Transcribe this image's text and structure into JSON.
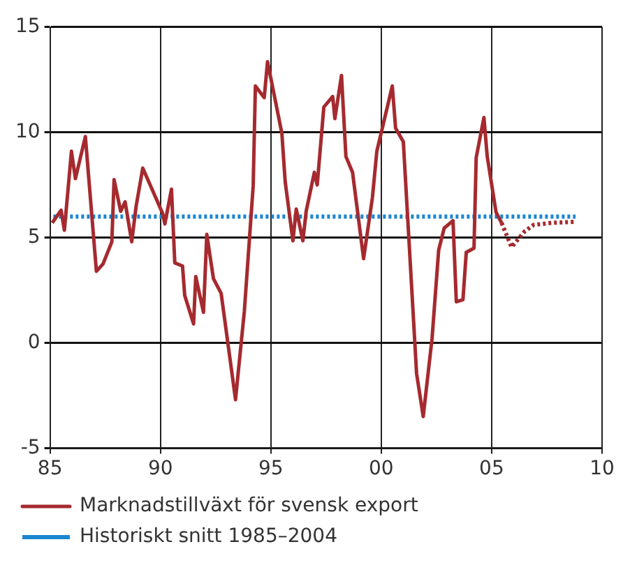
{
  "chart_data": {
    "type": "line",
    "xlim": [
      1985,
      2010
    ],
    "xticks": [
      {
        "value": 1985,
        "label": "85"
      },
      {
        "value": 1990,
        "label": "90"
      },
      {
        "value": 1995,
        "label": "95"
      },
      {
        "value": 2000,
        "label": "00"
      },
      {
        "value": 2005,
        "label": "05"
      },
      {
        "value": 2010,
        "label": "10"
      }
    ],
    "ylim": [
      -5,
      15
    ],
    "yticks": [
      -5,
      0,
      5,
      10,
      15
    ],
    "grid": true,
    "legend": "bottom",
    "marker": "none",
    "series": [
      {
        "name": "Marknadstillväxt för svensk export",
        "color": "#a52a2f",
        "line_style": "solid",
        "x": [
          1985.1,
          1985.5,
          1985.65,
          1985.97,
          1986.15,
          1986.6,
          1987.1,
          1987.4,
          1987.8,
          1987.9,
          1988.2,
          1988.4,
          1988.7,
          1988.9,
          1989.2,
          1990.1,
          1990.2,
          1990.5,
          1990.65,
          1991.0,
          1991.1,
          1991.5,
          1991.6,
          1991.95,
          1992.1,
          1992.4,
          1992.75,
          1993.4,
          1993.8,
          1994.2,
          1994.3,
          1994.7,
          1994.85,
          1995.5,
          1995.65,
          1996.0,
          1996.15,
          1996.45,
          1996.6,
          1996.97,
          1997.1,
          1997.4,
          1997.8,
          1997.9,
          1998.2,
          1998.4,
          1998.7,
          1999.2,
          1999.6,
          1999.8,
          2000.5,
          2000.65,
          2001.0,
          2001.6,
          2001.9,
          2002.3,
          2002.6,
          2002.85,
          2003.25,
          2003.4,
          2003.7,
          2003.85,
          2004.2,
          2004.3,
          2004.65,
          2004.8,
          2005.2,
          2005.45
        ],
        "values": [
          5.7,
          6.3,
          5.35,
          9.1,
          7.8,
          9.8,
          3.4,
          3.75,
          4.8,
          7.75,
          6.25,
          6.7,
          4.8,
          6.5,
          8.3,
          6.15,
          5.65,
          7.3,
          3.8,
          3.65,
          2.25,
          0.9,
          3.15,
          1.45,
          5.15,
          3.05,
          2.35,
          -2.7,
          1.5,
          7.45,
          12.2,
          11.65,
          13.35,
          9.95,
          7.65,
          4.85,
          6.35,
          4.85,
          6.25,
          8.1,
          7.5,
          11.2,
          11.7,
          10.65,
          12.7,
          8.85,
          8.1,
          4.0,
          6.9,
          9.1,
          12.2,
          10.2,
          9.55,
          -1.45,
          -3.5,
          0.2,
          4.4,
          5.45,
          5.8,
          1.95,
          2.05,
          4.3,
          4.5,
          8.8,
          10.7,
          8.85,
          6.2,
          5.7
        ]
      },
      {
        "color": "#a52a2f",
        "line_style": "dotted",
        "x": [
          2005.45,
          2005.9,
          2006.5,
          2006.9,
          2007.7,
          2008.8
        ],
        "values": [
          5.7,
          4.55,
          5.3,
          5.6,
          5.7,
          5.75
        ]
      },
      {
        "name": "Historiskt snitt 1985–2004",
        "color": "#1a86d0",
        "line_style": "dotted",
        "x": [
          1985.15,
          2008.8
        ],
        "values": [
          6.0,
          6.0
        ]
      }
    ]
  }
}
